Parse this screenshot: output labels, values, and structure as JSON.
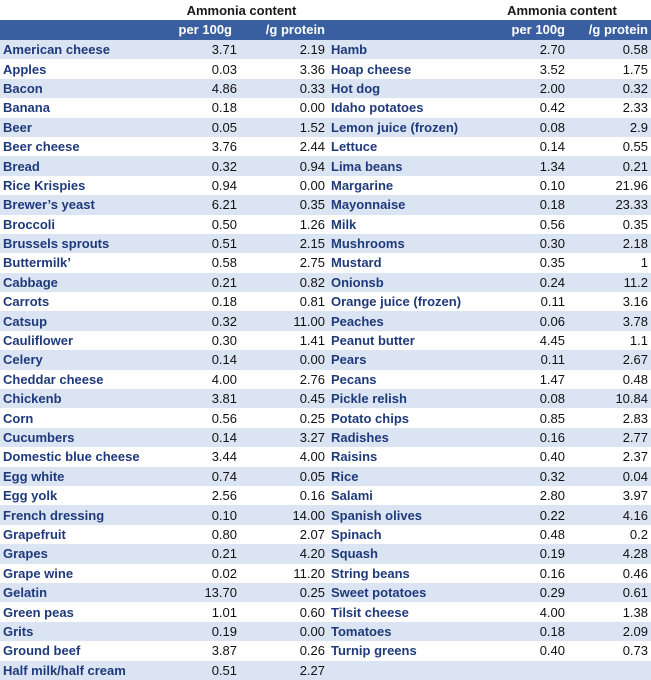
{
  "header": {
    "group_label_left": "Ammonia content",
    "group_label_right": "Ammonia content",
    "col_per100_left": "per 100g",
    "col_perprotein_left": "/g protein",
    "col_per100_right": "per 100g",
    "col_perprotein_right": "/g protein"
  },
  "rows": [
    {
      "l_name": "American cheese",
      "l_a": "3.71",
      "l_b": "2.19",
      "r_name": "Hamb",
      "r_a": "2.70",
      "r_b": "0.58"
    },
    {
      "l_name": "Apples",
      "l_a": "0.03",
      "l_b": "3.36",
      "r_name": "Hoap cheese",
      "r_a": "3.52",
      "r_b": "1.75"
    },
    {
      "l_name": "Bacon",
      "l_a": "4.86",
      "l_b": "0.33",
      "r_name": "Hot dog",
      "r_a": "2.00",
      "r_b": "0.32"
    },
    {
      "l_name": "Banana",
      "l_a": "0.18",
      "l_b": "0.00",
      "r_name": "Idaho potatoes",
      "r_a": "0.42",
      "r_b": "2.33"
    },
    {
      "l_name": "Beer",
      "l_a": "0.05",
      "l_b": "1.52",
      "r_name": "Lemon juice (frozen)",
      "r_a": "0.08",
      "r_b": "2.9"
    },
    {
      "l_name": "Beer cheese",
      "l_a": "3.76",
      "l_b": "2.44",
      "r_name": "Lettuce",
      "r_a": "0.14",
      "r_b": "0.55"
    },
    {
      "l_name": "Bread",
      "l_a": "0.32",
      "l_b": "0.94",
      "r_name": "Lima beans",
      "r_a": "1.34",
      "r_b": "0.21"
    },
    {
      "l_name": "Rice Krispies",
      "l_a": "0.94",
      "l_b": "0.00",
      "r_name": "Margarine",
      "r_a": "0.10",
      "r_b": "21.96"
    },
    {
      "l_name": "Brewer’s yeast",
      "l_a": "6.21",
      "l_b": "0.35",
      "r_name": "Mayonnaise",
      "r_a": "0.18",
      "r_b": "23.33"
    },
    {
      "l_name": "Broccoli",
      "l_a": "0.50",
      "l_b": "1.26",
      "r_name": "Milk",
      "r_a": "0.56",
      "r_b": "0.35"
    },
    {
      "l_name": "Brussels sprouts",
      "l_a": "0.51",
      "l_b": "2.15",
      "r_name": "Mushrooms",
      "r_a": "0.30",
      "r_b": "2.18"
    },
    {
      "l_name": "Buttermilk’",
      "l_a": "0.58",
      "l_b": "2.75",
      "r_name": "Mustard",
      "r_a": "0.35",
      "r_b": "1"
    },
    {
      "l_name": "Cabbage",
      "l_a": "0.21",
      "l_b": "0.82",
      "r_name": "Onionsb",
      "r_a": "0.24",
      "r_b": "11.2"
    },
    {
      "l_name": "Carrots",
      "l_a": "0.18",
      "l_b": "0.81",
      "r_name": "Orange juice (frozen)",
      "r_a": "0.11",
      "r_b": "3.16"
    },
    {
      "l_name": "Catsup",
      "l_a": "0.32",
      "l_b": "11.00",
      "r_name": "Peaches",
      "r_a": "0.06",
      "r_b": "3.78"
    },
    {
      "l_name": "Cauliflower",
      "l_a": "0.30",
      "l_b": "1.41",
      "r_name": "Peanut butter",
      "r_a": "4.45",
      "r_b": "1.1"
    },
    {
      "l_name": "Celery",
      "l_a": "0.14",
      "l_b": "0.00",
      "r_name": "Pears",
      "r_a": "0.11",
      "r_b": "2.67"
    },
    {
      "l_name": "Cheddar cheese",
      "l_a": "4.00",
      "l_b": "2.76",
      "r_name": "Pecans",
      "r_a": "1.47",
      "r_b": "0.48"
    },
    {
      "l_name": "Chickenb",
      "l_a": "3.81",
      "l_b": "0.45",
      "r_name": "Pickle relish",
      "r_a": "0.08",
      "r_b": "10.84"
    },
    {
      "l_name": "Corn",
      "l_a": "0.56",
      "l_b": "0.25",
      "r_name": "Potato chips",
      "r_a": "0.85",
      "r_b": "2.83"
    },
    {
      "l_name": "Cucumbers",
      "l_a": "0.14",
      "l_b": "3.27",
      "r_name": "Radishes",
      "r_a": "0.16",
      "r_b": "2.77"
    },
    {
      "l_name": "Domestic blue cheese",
      "l_a": "3.44",
      "l_b": "4.00",
      "r_name": "Raisins",
      "r_a": "0.40",
      "r_b": "2.37"
    },
    {
      "l_name": "Egg white",
      "l_a": "0.74",
      "l_b": "0.05",
      "r_name": "Rice",
      "r_a": "0.32",
      "r_b": "0.04"
    },
    {
      "l_name": "Egg yolk",
      "l_a": "2.56",
      "l_b": "0.16",
      "r_name": "Salami",
      "r_a": "2.80",
      "r_b": "3.97"
    },
    {
      "l_name": "French dressing",
      "l_a": "0.10",
      "l_b": "14.00",
      "r_name": "Spanish olives",
      "r_a": "0.22",
      "r_b": "4.16"
    },
    {
      "l_name": "Grapefruit",
      "l_a": "0.80",
      "l_b": "2.07",
      "r_name": "Spinach",
      "r_a": "0.48",
      "r_b": "0.2"
    },
    {
      "l_name": "Grapes",
      "l_a": "0.21",
      "l_b": "4.20",
      "r_name": "Squash",
      "r_a": "0.19",
      "r_b": "4.28"
    },
    {
      "l_name": "Grape wine",
      "l_a": "0.02",
      "l_b": "11.20",
      "r_name": "String beans",
      "r_a": "0.16",
      "r_b": "0.46"
    },
    {
      "l_name": "Gelatin",
      "l_a": "13.70",
      "l_b": "0.25",
      "r_name": "Sweet potatoes",
      "r_a": "0.29",
      "r_b": "0.61"
    },
    {
      "l_name": "Green peas",
      "l_a": "1.01",
      "l_b": "0.60",
      "r_name": "Tilsit cheese",
      "r_a": "4.00",
      "r_b": "1.38"
    },
    {
      "l_name": "Grits",
      "l_a": "0.19",
      "l_b": "0.00",
      "r_name": "Tomatoes",
      "r_a": "0.18",
      "r_b": "2.09"
    },
    {
      "l_name": "Ground beef",
      "l_a": "3.87",
      "l_b": "0.26",
      "r_name": "Turnip greens",
      "r_a": "0.40",
      "r_b": "0.73"
    },
    {
      "l_name": "Half milk/half cream",
      "l_a": "0.51",
      "l_b": "2.27",
      "r_name": "",
      "r_a": "",
      "r_b": ""
    }
  ]
}
